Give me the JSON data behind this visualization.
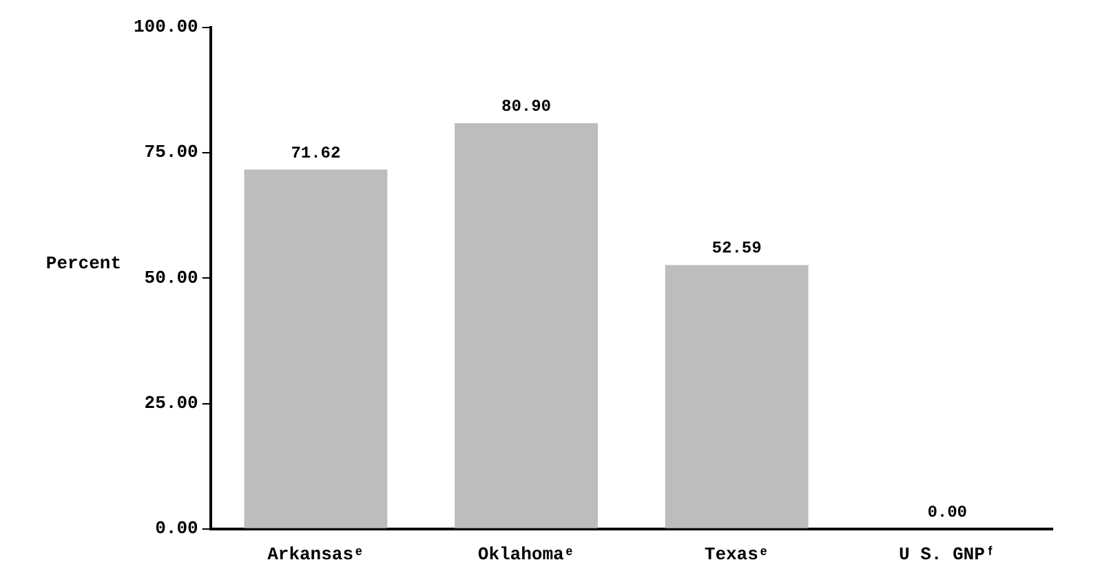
{
  "chart_data": {
    "type": "bar",
    "ylabel": "Percent",
    "categories": [
      "Arkansasᵉ",
      "Oklahomaᵉ",
      "Texasᵉ",
      "U S. GNPᶠ"
    ],
    "values": [
      71.62,
      80.9,
      52.59,
      0.0
    ],
    "value_labels": [
      "71.62",
      "80.90",
      "52.59",
      "0.00"
    ],
    "color": "#bdbdbd",
    "ylim": [
      0,
      100
    ],
    "yticks": [
      {
        "value": 0,
        "label": "0.00"
      },
      {
        "value": 25,
        "label": "25.00"
      },
      {
        "value": 50,
        "label": "50.00"
      },
      {
        "value": 75,
        "label": "75.00"
      },
      {
        "value": 100,
        "label": "100.00"
      }
    ],
    "grid": false,
    "legend": false
  }
}
